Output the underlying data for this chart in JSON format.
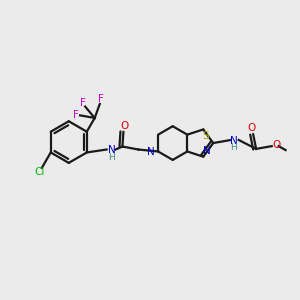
{
  "bg_color": "#ebebeb",
  "bond_color": "#1a1a1a",
  "atom_colors": {
    "N": "#0000cc",
    "O": "#dd0000",
    "S": "#aaaa00",
    "Cl": "#00bb00",
    "F": "#cc00cc",
    "H": "#448888",
    "C": "#1a1a1a"
  },
  "figsize": [
    3.0,
    3.0
  ],
  "dpi": 100,
  "lw": 1.6,
  "fontsize": 7.5
}
